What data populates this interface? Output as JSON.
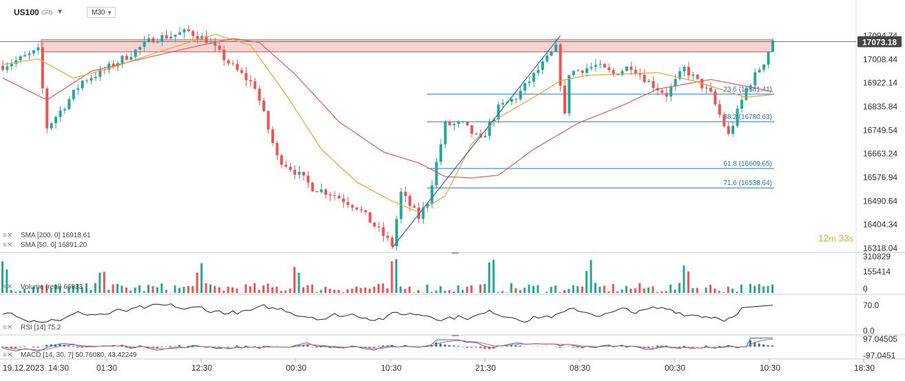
{
  "header": {
    "symbol": "US100",
    "instrument_type": "CFD",
    "timeframe": "M30",
    "caret_icon": "chevron-down-icon"
  },
  "countdown": {
    "minutes": "12",
    "minutes_unit": "m",
    "seconds": "33",
    "seconds_unit": "s"
  },
  "colors": {
    "up": "#26a69a",
    "down": "#ef5350",
    "sma200": "#e05a5a",
    "sma50": "#f0a030",
    "fib": "#1e73be",
    "zone_fill": "#f7d4d4",
    "zone_border": "#d9534f",
    "price_label_bg": "#454545",
    "rsi_line": "#222222",
    "macd_line": "#1e73be",
    "signal_line": "#e05a5a"
  },
  "chart_data": [
    {
      "panel": "price",
      "type": "candlestick",
      "symbol": "US100",
      "timeframe": "M30",
      "current_price": "17073.18",
      "last_high_tick": "17094.74",
      "y_ticks": [
        "17094.74",
        "17008.44",
        "16922.14",
        "16835.84",
        "16749.54",
        "16663.24",
        "16576.94",
        "16490.64",
        "16404.34",
        "16318.04"
      ],
      "ylim": [
        16318.04,
        17094.74
      ],
      "x_ticks": [
        "19.12.2023",
        "14:30",
        "01:30",
        "12:30",
        "00:30",
        "10:30",
        "21:30",
        "08:30",
        "00:30",
        "10:30",
        "18:30"
      ],
      "resistance_zone": [
        17036,
        17080
      ],
      "fibonacci": [
        {
          "label": "23.6 (16881.41)",
          "level": 16881.41
        },
        {
          "label": "38.2 (16780.63)",
          "level": 16780.63
        },
        {
          "label": "61.8 (16609.65)",
          "level": 16609.65
        },
        {
          "label": "71.6 (16538.64)",
          "level": 16538.64
        }
      ],
      "price_path": [
        [
          0,
          16985
        ],
        [
          4,
          17010
        ],
        [
          8,
          17040
        ],
        [
          10,
          16760
        ],
        [
          14,
          16840
        ],
        [
          18,
          16930
        ],
        [
          22,
          16960
        ],
        [
          26,
          17000
        ],
        [
          30,
          17040
        ],
        [
          34,
          17085
        ],
        [
          38,
          17095
        ],
        [
          42,
          17110
        ],
        [
          46,
          17080
        ],
        [
          52,
          16980
        ],
        [
          57,
          16910
        ],
        [
          62,
          16650
        ],
        [
          66,
          16600
        ],
        [
          70,
          16540
        ],
        [
          74,
          16520
        ],
        [
          80,
          16470
        ],
        [
          84,
          16400
        ],
        [
          88,
          16330
        ],
        [
          90,
          16520
        ],
        [
          94,
          16430
        ],
        [
          96,
          16490
        ],
        [
          100,
          16770
        ],
        [
          104,
          16770
        ],
        [
          108,
          16710
        ],
        [
          112,
          16830
        ],
        [
          116,
          16870
        ],
        [
          120,
          16950
        ],
        [
          124,
          17030
        ],
        [
          125,
          17050
        ],
        [
          127,
          16800
        ],
        [
          128,
          16960
        ],
        [
          134,
          16985
        ],
        [
          138,
          16955
        ],
        [
          142,
          16985
        ],
        [
          146,
          16925
        ],
        [
          150,
          16880
        ],
        [
          154,
          16975
        ],
        [
          160,
          16880
        ],
        [
          164,
          16730
        ],
        [
          168,
          16900
        ],
        [
          172,
          17000
        ],
        [
          174,
          17080
        ]
      ],
      "sma200_path": [
        [
          0,
          16940
        ],
        [
          10,
          16860
        ],
        [
          20,
          16965
        ],
        [
          30,
          17005
        ],
        [
          42,
          17050
        ],
        [
          52,
          17085
        ],
        [
          58,
          17070
        ],
        [
          66,
          16955
        ],
        [
          76,
          16780
        ],
        [
          86,
          16670
        ],
        [
          94,
          16630
        ],
        [
          100,
          16580
        ],
        [
          106,
          16575
        ],
        [
          112,
          16585
        ],
        [
          120,
          16680
        ],
        [
          130,
          16775
        ],
        [
          140,
          16840
        ],
        [
          148,
          16900
        ],
        [
          160,
          16935
        ],
        [
          168,
          16910
        ],
        [
          174,
          16890
        ]
      ],
      "sma50_path": [
        [
          0,
          16990
        ],
        [
          8,
          17010
        ],
        [
          16,
          16940
        ],
        [
          24,
          16975
        ],
        [
          36,
          17040
        ],
        [
          48,
          17100
        ],
        [
          56,
          17060
        ],
        [
          64,
          16880
        ],
        [
          72,
          16680
        ],
        [
          80,
          16560
        ],
        [
          88,
          16490
        ],
        [
          94,
          16450
        ],
        [
          100,
          16510
        ],
        [
          106,
          16700
        ],
        [
          112,
          16795
        ],
        [
          120,
          16870
        ],
        [
          126,
          16930
        ],
        [
          132,
          16950
        ],
        [
          140,
          16955
        ],
        [
          148,
          16960
        ],
        [
          156,
          16930
        ],
        [
          162,
          16900
        ],
        [
          168,
          16870
        ],
        [
          174,
          16880
        ]
      ],
      "trendline": {
        "from": [
          88,
          16320
        ],
        "to": [
          126,
          17095
        ]
      },
      "indicators": [
        {
          "label": "SMA [200, 0]",
          "value": "16918.61"
        },
        {
          "label": "SMA [50, 0]",
          "value": "16891.20"
        }
      ]
    },
    {
      "panel": "volume",
      "type": "bar",
      "label": "Volume (real)",
      "value": "66833",
      "y_ticks": [
        "310829",
        "155414",
        "0"
      ],
      "ylim": [
        0,
        310829
      ]
    },
    {
      "panel": "rsi",
      "type": "line",
      "label": "RSI [14]",
      "value": "75.2",
      "y_ticks": [
        "70.0",
        "0.0"
      ],
      "ylim": [
        0,
        100
      ]
    },
    {
      "panel": "macd",
      "type": "line",
      "label": "MACD [14, 30, 7]",
      "value1": "50.76080",
      "value2": "43.42249",
      "y_ticks": [
        "97.04505",
        "-97.0451"
      ],
      "ylim": [
        -97.0451,
        97.04505
      ]
    }
  ]
}
